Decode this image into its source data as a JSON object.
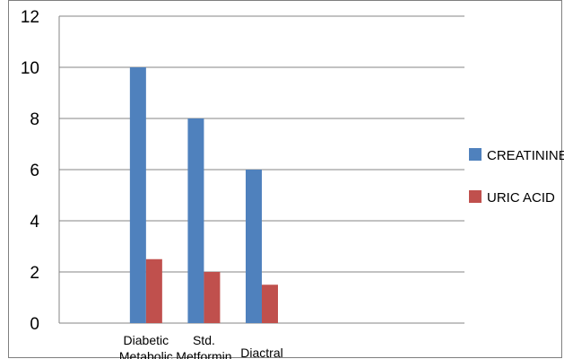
{
  "chart_data": {
    "type": "bar",
    "categories": [
      "Diabetic",
      "Std.",
      "Diactral"
    ],
    "category_label_lines": [
      [
        "Diabetic",
        "Metabolic"
      ],
      [
        "Std.",
        "Metformin"
      ],
      [
        "Diactral"
      ]
    ],
    "series": [
      {
        "name": "CREATININE",
        "values": [
          10,
          8,
          6
        ],
        "color": "#4F81BD"
      },
      {
        "name": "URIC ACID",
        "values": [
          2.5,
          2,
          1.5
        ],
        "color": "#C0504D"
      }
    ],
    "ylim": [
      0,
      12
    ],
    "yticks": [
      0,
      2,
      4,
      6,
      8,
      10,
      12
    ],
    "grid": true,
    "legend_position": "right"
  }
}
